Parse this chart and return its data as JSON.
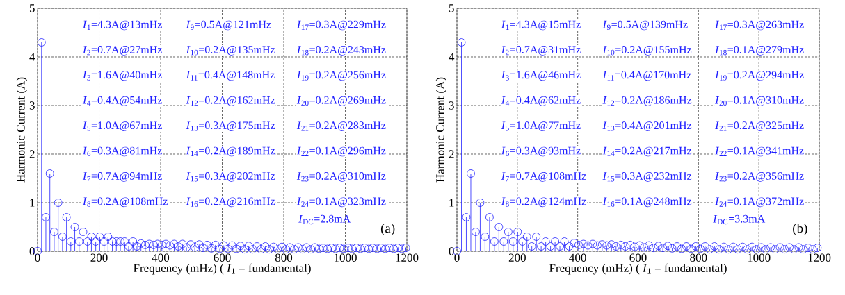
{
  "chart_data": [
    {
      "type": "lollipop",
      "xlabel": "Frequency (mHz) ( *I*$_{1}$ = fundamental)",
      "ylabel": "Harmonic Current (A)",
      "color": "#1f1fff",
      "marker": "circle",
      "grid": true,
      "xlim": [
        0,
        1200
      ],
      "ylim": [
        0,
        5
      ],
      "xticks": [
        0,
        200,
        400,
        600,
        800,
        1000,
        1200
      ],
      "yticks": [
        0,
        1,
        2,
        3,
        4,
        5
      ],
      "x": [
        0,
        13,
        27,
        40,
        54,
        67,
        81,
        94,
        108,
        121,
        135,
        148,
        162,
        175,
        189,
        202,
        216,
        229,
        243,
        256,
        269,
        283,
        296,
        310,
        323,
        336,
        350,
        363,
        377,
        390,
        404,
        417,
        430,
        444,
        457,
        471,
        484,
        498,
        511,
        525,
        538,
        551,
        565,
        578,
        592,
        605,
        619,
        632,
        646,
        659,
        673,
        686,
        699,
        713,
        726,
        740,
        753,
        767,
        780,
        794,
        807,
        820,
        834,
        847,
        861,
        874,
        888,
        901,
        915,
        928,
        942,
        955,
        968,
        982,
        995,
        1009,
        1022,
        1036,
        1049,
        1063,
        1076,
        1089,
        1103,
        1116,
        1130,
        1143,
        1157,
        1170,
        1184,
        1197
      ],
      "values": [
        0,
        4.3,
        0.7,
        1.6,
        0.4,
        1.0,
        0.3,
        0.7,
        0.2,
        0.5,
        0.2,
        0.4,
        0.2,
        0.3,
        0.2,
        0.3,
        0.2,
        0.3,
        0.2,
        0.2,
        0.2,
        0.2,
        0.1,
        0.2,
        0.1,
        0.16,
        0.13,
        0.15,
        0.13,
        0.15,
        0.13,
        0.15,
        0.12,
        0.15,
        0.1,
        0.15,
        0.08,
        0.14,
        0.08,
        0.14,
        0.07,
        0.13,
        0.06,
        0.13,
        0.05,
        0.12,
        0.05,
        0.12,
        0.05,
        0.11,
        0.04,
        0.11,
        0.04,
        0.1,
        0.04,
        0.1,
        0.04,
        0.09,
        0.04,
        0.09,
        0.04,
        0.08,
        0.04,
        0.08,
        0.04,
        0.08,
        0.04,
        0.08,
        0.05,
        0.07,
        0.05,
        0.07,
        0.05,
        0.07,
        0.05,
        0.07,
        0.05,
        0.07,
        0.05,
        0.07,
        0.05,
        0.07,
        0.05,
        0.07,
        0.05,
        0.07,
        0.05,
        0.07,
        0.05,
        0.07
      ],
      "annotations": [
        "*I*$_{1}$=4.3A@13mHz",
        "*I*$_{2}$=0.7A@27mHz",
        "*I*$_{3}$=1.6A@40mHz",
        "*I*$_{4}$=0.4A@54mHz",
        "*I*$_{5}$=1.0A@67mHz",
        "*I*$_{6}$=0.3A@81mHz",
        "*I*$_{7}$=0.7A@94mHz",
        "*I*$_{8}$=0.2A@108mHz",
        "*I*$_{9}$=0.5A@121mHz",
        "*I*$_{10}$=0.2A@135mHz",
        "*I*$_{11}$=0.4A@148mHz",
        "*I*$_{12}$=0.2A@162mHz",
        "*I*$_{13}$=0.3A@175mHz",
        "*I*$_{14}$=0.2A@189mHz",
        "*I*$_{15}$=0.3A@202mHz",
        "*I*$_{16}$=0.2A@216mHz",
        "*I*$_{17}$=0.3A@229mHz",
        "*I*$_{18}$=0.2A@243mHz",
        "*I*$_{19}$=0.2A@256mHz",
        "*I*$_{20}$=0.2A@269mHz",
        "*I*$_{21}$=0.2A@283mHz",
        "*I*$_{22}$=0.1A@296mHz",
        "*I*$_{23}$=0.2A@310mHz",
        "*I*$_{24}$=0.1A@323mHz",
        "*I*$_{DC}$=2.8mA",
        "(a)"
      ]
    },
    {
      "type": "lollipop",
      "xlabel": "Frequency (mHz) ( *I*$_{1}$ = fundamental)",
      "ylabel": "Harmonic Current (A)",
      "color": "#1f1fff",
      "marker": "circle",
      "grid": true,
      "xlim": [
        0,
        1200
      ],
      "ylim": [
        0,
        5
      ],
      "xticks": [
        0,
        200,
        400,
        600,
        800,
        1000,
        1200
      ],
      "yticks": [
        0,
        1,
        2,
        3,
        4,
        5
      ],
      "x": [
        0,
        15,
        31,
        46,
        62,
        77,
        93,
        108,
        124,
        139,
        155,
        170,
        186,
        201,
        217,
        232,
        248,
        263,
        279,
        294,
        310,
        325,
        341,
        356,
        372,
        388,
        403,
        419,
        434,
        450,
        465,
        481,
        496,
        512,
        527,
        543,
        558,
        574,
        589,
        605,
        620,
        636,
        651,
        667,
        682,
        698,
        713,
        729,
        744,
        760,
        775,
        791,
        806,
        822,
        837,
        853,
        868,
        884,
        899,
        915,
        930,
        946,
        961,
        977,
        992,
        1008,
        1023,
        1039,
        1054,
        1070,
        1085,
        1101,
        1116,
        1132,
        1147,
        1163,
        1178,
        1194
      ],
      "values": [
        0,
        4.3,
        0.7,
        1.6,
        0.4,
        1.0,
        0.3,
        0.7,
        0.2,
        0.5,
        0.2,
        0.4,
        0.2,
        0.4,
        0.2,
        0.3,
        0.1,
        0.3,
        0.1,
        0.2,
        0.1,
        0.2,
        0.1,
        0.2,
        0.1,
        0.17,
        0.13,
        0.15,
        0.12,
        0.15,
        0.12,
        0.14,
        0.12,
        0.14,
        0.1,
        0.13,
        0.1,
        0.13,
        0.09,
        0.12,
        0.08,
        0.12,
        0.07,
        0.11,
        0.07,
        0.11,
        0.06,
        0.1,
        0.05,
        0.1,
        0.05,
        0.1,
        0.05,
        0.1,
        0.04,
        0.1,
        0.04,
        0.09,
        0.04,
        0.09,
        0.04,
        0.09,
        0.04,
        0.09,
        0.04,
        0.08,
        0.04,
        0.08,
        0.04,
        0.08,
        0.04,
        0.08,
        0.04,
        0.08,
        0.04,
        0.07,
        0.04,
        0.07
      ],
      "annotations": [
        "*I*$_{1}$=4.3A@15mHz",
        "*I*$_{2}$=0.7A@31mHz",
        "*I*$_{3}$=1.6A@46mHz",
        "*I*$_{4}$=0.4A@62mHz",
        "*I*$_{5}$=1.0A@77mHz",
        "*I*$_{6}$=0.3A@93mHz",
        "*I*$_{7}$=0.7A@108mHz",
        "*I*$_{8}$=0.2A@124mHz",
        "*I*$_{9}$=0.5A@139mHz",
        "*I*$_{10}$=0.2A@155mHz",
        "*I*$_{11}$=0.4A@170mHz",
        "*I*$_{12}$=0.2A@186mHz",
        "*I*$_{13}$=0.4A@201mHz",
        "*I*$_{14}$=0.2A@217mHz",
        "*I*$_{15}$=0.3A@232mHz",
        "*I*$_{16}$=0.1A@248mHz",
        "*I*$_{17}$=0.3A@263mHz",
        "*I*$_{18}$=0.1A@279mHz",
        "*I*$_{19}$=0.2A@294mHz",
        "*I*$_{20}$=0.1A@310mHz",
        "*I*$_{21}$=0.2A@325mHz",
        "*I*$_{22}$=0.1A@341mHz",
        "*I*$_{23}$=0.2A@356mHz",
        "*I*$_{24}$=0.1A@372mHz",
        "*I*$_{DC}$=3.3mA",
        "(b)"
      ]
    }
  ]
}
